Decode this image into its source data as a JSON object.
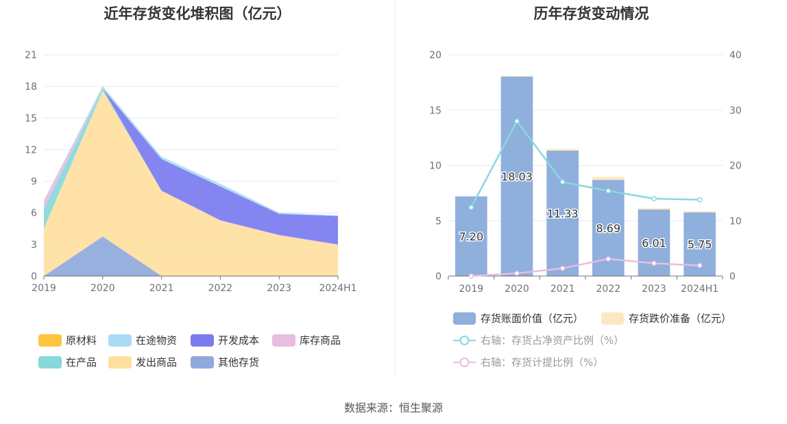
{
  "source": "数据来源：恒生聚源",
  "chart_data": [
    {
      "type": "area",
      "title": "近年存货变化堆积图（亿元）",
      "x": [
        "2019",
        "2020",
        "2021",
        "2022",
        "2023",
        "2024H1"
      ],
      "ylim": [
        0,
        21
      ],
      "yticks": [
        0,
        3,
        6,
        9,
        12,
        15,
        18,
        21
      ],
      "stacked": true,
      "grid": true,
      "legend_position": "bottom",
      "series": [
        {
          "name": "其他存货",
          "color": "#8fa9db",
          "values": [
            0,
            3.75,
            0,
            0,
            0,
            0
          ]
        },
        {
          "name": "发出商品",
          "color": "#fedf9f",
          "values": [
            4.5,
            13.85,
            8.1,
            5.25,
            3.85,
            2.95
          ]
        },
        {
          "name": "在产品",
          "color": "#88d8dc",
          "values": [
            1.9,
            0.2,
            0,
            0,
            0,
            0
          ]
        },
        {
          "name": "库存商品",
          "color": "#e8bde0",
          "values": [
            0.8,
            0,
            0,
            0.05,
            0.05,
            0.05
          ]
        },
        {
          "name": "开发成本",
          "color": "#7b7bf0",
          "values": [
            0,
            0,
            3.0,
            3.2,
            2.0,
            2.7
          ]
        },
        {
          "name": "在途物资",
          "color": "#a8dcf6",
          "values": [
            0,
            0.23,
            0.23,
            0.25,
            0.11,
            0.05
          ]
        },
        {
          "name": "原材料",
          "color": "#ffc53d",
          "values": [
            0,
            0,
            0,
            0,
            0,
            0
          ]
        }
      ],
      "legend": [
        "原材料",
        "在途物资",
        "开发成本",
        "库存商品",
        "在产品",
        "发出商品",
        "其他存货"
      ]
    },
    {
      "type": "bar",
      "title": "历年存货变动情况",
      "categories": [
        "2019",
        "2020",
        "2021",
        "2022",
        "2023",
        "2024H1"
      ],
      "ylim": [
        0,
        20
      ],
      "yticks": [
        0,
        5,
        10,
        15,
        20
      ],
      "y2lim": [
        0,
        40
      ],
      "y2ticks": [
        0,
        10,
        20,
        30,
        40
      ],
      "grid": true,
      "legend_position": "bottom",
      "series": [
        {
          "name": "存货账面价值（亿元）",
          "type": "bar",
          "axis": "left",
          "color": "#8fafdc",
          "values": [
            7.2,
            18.03,
            11.33,
            8.69,
            6.01,
            5.75
          ],
          "labels": [
            "7.20",
            "18.03",
            "11.33",
            "8.69",
            "6.01",
            "5.75"
          ]
        },
        {
          "name": "存货跌价准备（亿元）",
          "type": "bar-stack",
          "axis": "left",
          "color": "#fde7c3",
          "values": [
            0.0,
            0.08,
            0.16,
            0.28,
            0.14,
            0.11
          ]
        },
        {
          "name": "右轴：存货占净资产比例（%）",
          "type": "line",
          "axis": "right",
          "color": "#88d8dc",
          "values": [
            12.4,
            28.0,
            17.0,
            15.4,
            14.0,
            13.8
          ]
        },
        {
          "name": "右轴：存货计提比例（%）",
          "type": "line",
          "axis": "right",
          "color": "#e8bde0",
          "values": [
            0.0,
            0.5,
            1.4,
            3.1,
            2.3,
            1.9
          ]
        }
      ]
    }
  ]
}
